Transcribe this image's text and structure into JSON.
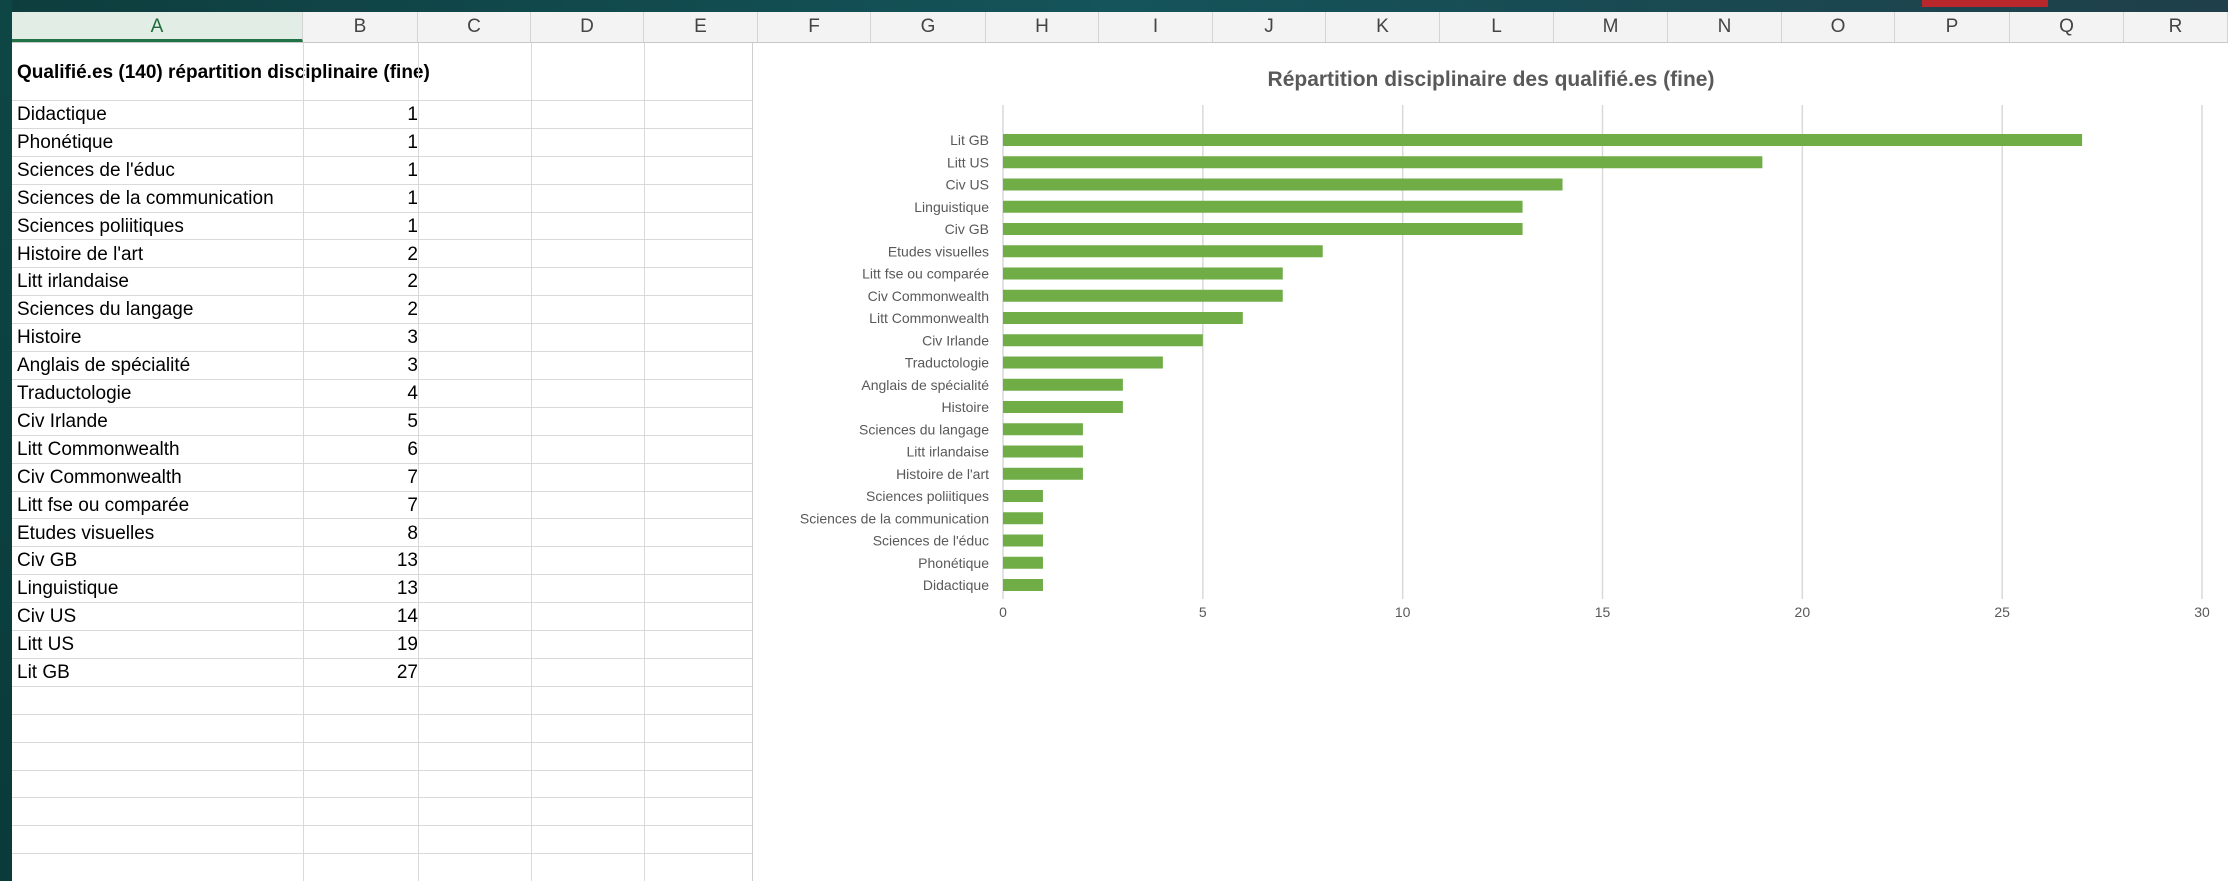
{
  "columns": [
    "A",
    "B",
    "C",
    "D",
    "E",
    "F",
    "G",
    "H",
    "I",
    "J",
    "K",
    "L",
    "M",
    "N",
    "O",
    "P",
    "Q",
    "R"
  ],
  "active_column": "A",
  "table": {
    "title": "Qualifié.es (140) répartition disciplinaire (fine)",
    "rows": [
      {
        "label": "Didactique",
        "value": "1"
      },
      {
        "label": "Phonétique",
        "value": "1"
      },
      {
        "label": "Sciences de l'éduc",
        "value": "1"
      },
      {
        "label": "Sciences de la communication",
        "value": "1"
      },
      {
        "label": "Sciences poliitiques",
        "value": "1"
      },
      {
        "label": "Histoire de l'art",
        "value": "2"
      },
      {
        "label": "Litt irlandaise",
        "value": "2"
      },
      {
        "label": "Sciences du langage",
        "value": "2"
      },
      {
        "label": "Histoire",
        "value": "3"
      },
      {
        "label": "Anglais de spécialité",
        "value": "3"
      },
      {
        "label": "Traductologie",
        "value": "4"
      },
      {
        "label": "Civ Irlande",
        "value": "5"
      },
      {
        "label": "Litt Commonwealth",
        "value": "6"
      },
      {
        "label": "Civ Commonwealth",
        "value": "7"
      },
      {
        "label": "Litt fse ou comparée",
        "value": "7"
      },
      {
        "label": "Etudes visuelles",
        "value": "8"
      },
      {
        "label": "Civ GB",
        "value": "13"
      },
      {
        "label": "Linguistique",
        "value": "13"
      },
      {
        "label": "Civ US",
        "value": "14"
      },
      {
        "label": "Litt US",
        "value": "19"
      },
      {
        "label": "Lit GB",
        "value": "27"
      }
    ]
  },
  "chart_data": {
    "type": "bar",
    "orientation": "horizontal",
    "title": "Répartition disciplinaire des qualifié.es (fine)",
    "categories": [
      "Lit GB",
      "Litt US",
      "Civ US",
      "Linguistique",
      "Civ GB",
      "Etudes visuelles",
      "Litt fse ou comparée",
      "Civ Commonwealth",
      "Litt Commonwealth",
      "Civ Irlande",
      "Traductologie",
      "Anglais de spécialité",
      "Histoire",
      "Sciences du langage",
      "Litt irlandaise",
      "Histoire de l'art",
      "Sciences poliitiques",
      "Sciences de la communication",
      "Sciences de l'éduc",
      "Phonétique",
      "Didactique"
    ],
    "values": [
      27,
      19,
      14,
      13,
      13,
      8,
      7,
      7,
      6,
      5,
      4,
      3,
      3,
      2,
      2,
      2,
      1,
      1,
      1,
      1,
      1
    ],
    "xlim": [
      0,
      30
    ],
    "xticks": [
      "0",
      "5",
      "10",
      "15",
      "20",
      "25",
      "30"
    ],
    "grid": true,
    "bar_color": "#70ad47"
  }
}
